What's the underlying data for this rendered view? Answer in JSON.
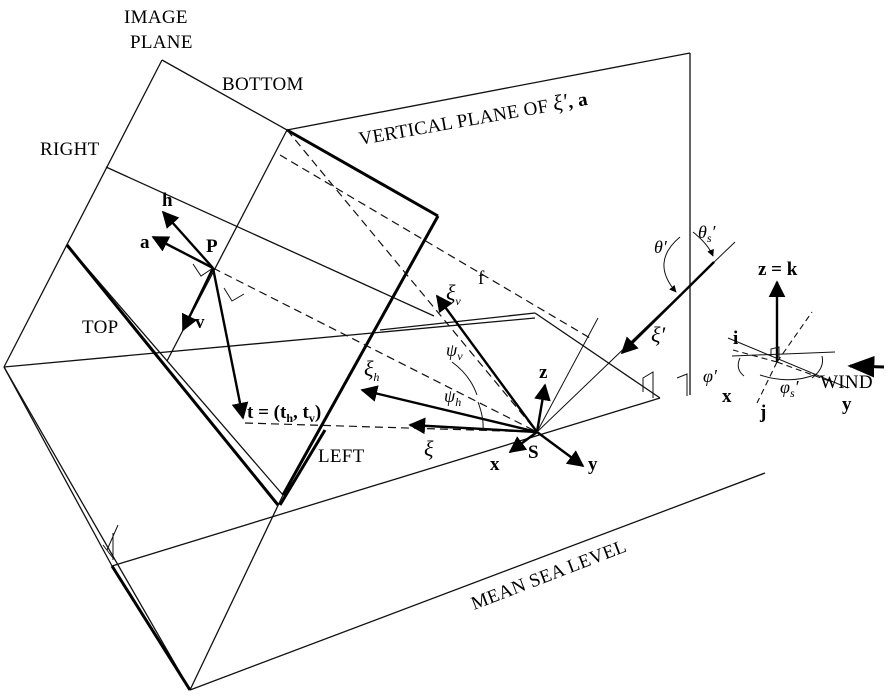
{
  "labels": {
    "image_plane_1": "IMAGE",
    "image_plane_2": "PLANE",
    "bottom": "BOTTOM",
    "right": "RIGHT",
    "top": "TOP",
    "left": "LEFT",
    "vertical_plane": "VERTICAL PLANE OF",
    "vertical_plane_xi": "ξ′",
    "vertical_plane_a": ", a",
    "mean_sea_level": "MEAN SEA LEVEL",
    "wind": "WIND",
    "f": "f",
    "h": "h",
    "a": "a",
    "P": "P",
    "v": "v",
    "t_vec": "t = (t",
    "t_h_sub": "h",
    "t_comma": ", t",
    "t_v_sub": "v",
    "t_close": ")",
    "xi_v": "ξ",
    "xi_v_sub": "v",
    "psi_v": "ψ",
    "psi_v_sub": "v",
    "xi_h": "ξ",
    "xi_h_sub": "h",
    "psi_h": "ψ",
    "psi_h_sub": "h",
    "xi": "ξ",
    "S": "S",
    "x": "x",
    "y": "y",
    "z": "z",
    "xi_prime": "ξ′",
    "theta_prime": "θ′",
    "theta_s": "θ",
    "theta_s_sub": "s",
    "theta_s_prime": "′",
    "z_eq_k": "z = k",
    "i": "i",
    "j": "j",
    "phi_prime": "φ′",
    "phi_s": "φ",
    "phi_s_sub": "s",
    "phi_s_prime": "′",
    "x2": "x",
    "y2": "y"
  }
}
